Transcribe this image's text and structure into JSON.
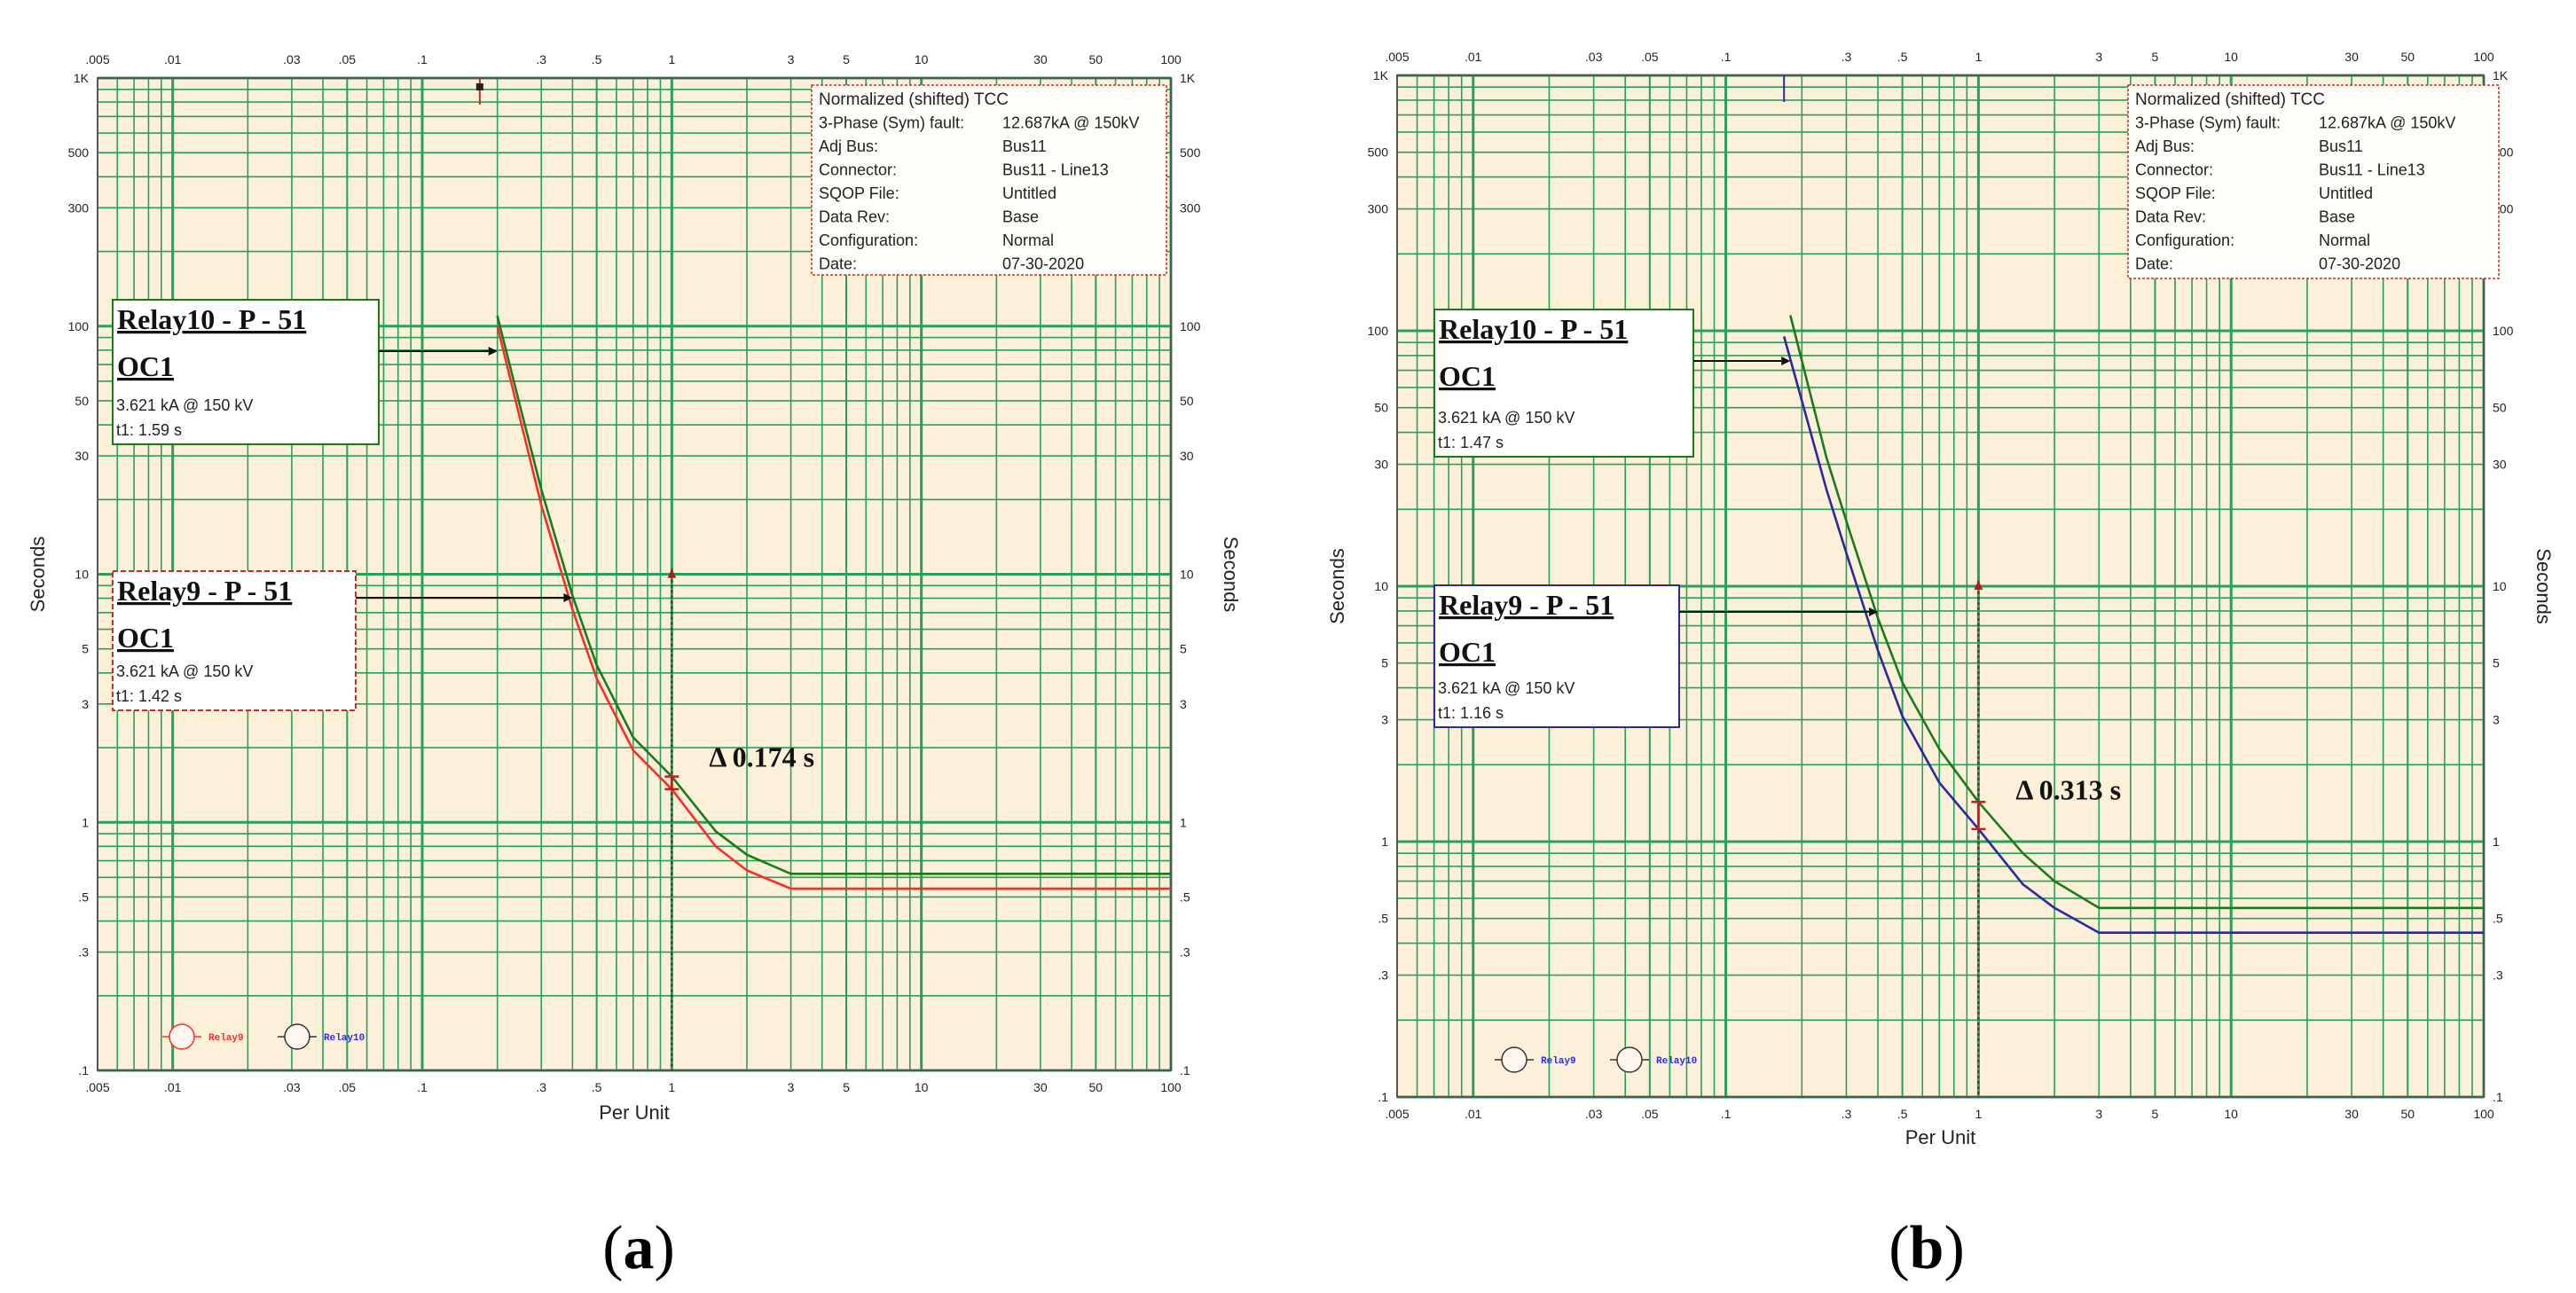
{
  "panels": [
    {
      "id": "a",
      "caption_open": "(",
      "caption_letter": "a",
      "caption_close": ")",
      "chart_data": {
        "type": "line",
        "scale": "log-log",
        "xlabel": "Per Unit",
        "ylabel": "Seconds",
        "ylabel_right": "Seconds",
        "xlim": [
          0.005,
          100
        ],
        "ylim": [
          0.1,
          1000
        ],
        "x_ticks": [
          {
            "v": 0.005,
            "t": ".005"
          },
          {
            "v": 0.01,
            "t": ".01"
          },
          {
            "v": 0.03,
            "t": ".03"
          },
          {
            "v": 0.05,
            "t": ".05"
          },
          {
            "v": 0.1,
            "t": ".1"
          },
          {
            "v": 0.3,
            "t": ".3"
          },
          {
            "v": 0.5,
            "t": ".5"
          },
          {
            "v": 1,
            "t": "1"
          },
          {
            "v": 3,
            "t": "3"
          },
          {
            "v": 5,
            "t": "5"
          },
          {
            "v": 10,
            "t": "10"
          },
          {
            "v": 30,
            "t": "30"
          },
          {
            "v": 50,
            "t": "50"
          },
          {
            "v": 100,
            "t": "100"
          }
        ],
        "y_ticks": [
          {
            "v": 0.1,
            "t": ".1"
          },
          {
            "v": 0.3,
            "t": ".3"
          },
          {
            "v": 0.5,
            "t": ".5"
          },
          {
            "v": 1,
            "t": "1"
          },
          {
            "v": 3,
            "t": "3"
          },
          {
            "v": 5,
            "t": "5"
          },
          {
            "v": 10,
            "t": "10"
          },
          {
            "v": 30,
            "t": "30"
          },
          {
            "v": 50,
            "t": "50"
          },
          {
            "v": 100,
            "t": "100"
          },
          {
            "v": 300,
            "t": "300"
          },
          {
            "v": 500,
            "t": "500"
          },
          {
            "v": 1000,
            "t": "1K"
          }
        ],
        "series": [
          {
            "name": "Relay10",
            "color": "#1a7a1a",
            "x": [
              0.2,
              0.25,
              0.3,
              0.4,
              0.5,
              0.7,
              1,
              1.5,
              2,
              3,
              100
            ],
            "y": [
              110,
              45,
              22,
              8.2,
              4.3,
              2.2,
              1.53,
              0.92,
              0.74,
              0.62,
              0.62
            ]
          },
          {
            "name": "Relay9",
            "color": "#ff2a2a",
            "x": [
              0.2,
              0.25,
              0.3,
              0.4,
              0.5,
              0.7,
              1,
              1.5,
              2,
              3,
              100
            ],
            "y": [
              100,
              40,
              19,
              7.2,
              3.8,
              1.95,
              1.36,
              0.8,
              0.64,
              0.54,
              0.54
            ]
          }
        ],
        "delta_label": "Δ 0.174 s",
        "delta_x": 1,
        "delta_top": 1.53,
        "delta_bottom": 1.36,
        "fault_marker_x": 1,
        "fault_marker_top": 10.5,
        "top_marker_x": 0.17,
        "top_marker_color": "#cc2a2a",
        "info_box": {
          "title": "Normalized (shifted) TCC",
          "rows": [
            {
              "k": "3-Phase (Sym) fault:",
              "v": "12.687kA @ 150kV"
            },
            {
              "k": "Adj Bus:",
              "v": "Bus11"
            },
            {
              "k": "Connector:",
              "v": "Bus11 - Line13"
            },
            {
              "k": "SQOP File:",
              "v": "Untitled"
            },
            {
              "k": "Data Rev:",
              "v": "Base"
            },
            {
              "k": "Configuration:",
              "v": "Normal"
            },
            {
              "k": "Date:",
              "v": "07-30-2020"
            }
          ]
        },
        "annotations": [
          {
            "title": "Relay10 - P - 51",
            "sub": "OC1",
            "line1": "3.621 kA @ 150 kV",
            "line2": "t1: 1.59 s",
            "border": "#1a7a1a",
            "dashed": false,
            "target_x": 0.2,
            "target_y": 100
          },
          {
            "title": "Relay9 - P - 51",
            "sub": "OC1",
            "line1": "3.621 kA @ 150 kV",
            "line2": "t1: 1.42 s",
            "border": "#cc2a2a",
            "dashed": true,
            "target_x": 0.4,
            "target_y": 9
          }
        ],
        "legend": [
          {
            "label": "Relay9",
            "color": "#ff2a2a",
            "ring": "#ff2a2a"
          },
          {
            "label": "Relay10",
            "color": "#2a2aff",
            "ring": "#333333"
          }
        ]
      }
    },
    {
      "id": "b",
      "caption_open": "(",
      "caption_letter": "b",
      "caption_close": ")",
      "chart_data": {
        "type": "line",
        "scale": "log-log",
        "xlabel": "Per Unit",
        "ylabel": "Seconds",
        "ylabel_right": "Seconds",
        "xlim": [
          0.005,
          100
        ],
        "ylim": [
          0.1,
          1000
        ],
        "x_ticks": [
          {
            "v": 0.005,
            "t": ".005"
          },
          {
            "v": 0.01,
            "t": ".01"
          },
          {
            "v": 0.03,
            "t": ".03"
          },
          {
            "v": 0.05,
            "t": ".05"
          },
          {
            "v": 0.1,
            "t": ".1"
          },
          {
            "v": 0.3,
            "t": ".3"
          },
          {
            "v": 0.5,
            "t": ".5"
          },
          {
            "v": 1,
            "t": "1"
          },
          {
            "v": 3,
            "t": "3"
          },
          {
            "v": 5,
            "t": "5"
          },
          {
            "v": 10,
            "t": "10"
          },
          {
            "v": 30,
            "t": "30"
          },
          {
            "v": 50,
            "t": "50"
          },
          {
            "v": 100,
            "t": "100"
          }
        ],
        "y_ticks": [
          {
            "v": 0.1,
            "t": ".1"
          },
          {
            "v": 0.3,
            "t": ".3"
          },
          {
            "v": 0.5,
            "t": ".5"
          },
          {
            "v": 1,
            "t": "1"
          },
          {
            "v": 3,
            "t": "3"
          },
          {
            "v": 5,
            "t": "5"
          },
          {
            "v": 10,
            "t": "10"
          },
          {
            "v": 30,
            "t": "30"
          },
          {
            "v": 50,
            "t": "50"
          },
          {
            "v": 100,
            "t": "100"
          },
          {
            "v": 300,
            "t": "300"
          },
          {
            "v": 500,
            "t": "500"
          },
          {
            "v": 1000,
            "t": "1K"
          }
        ],
        "series": [
          {
            "name": "Relay10",
            "color": "#1a7a1a",
            "x": [
              0.18,
              0.25,
              0.3,
              0.4,
              0.5,
              0.7,
              1,
              1.5,
              2,
              3,
              100
            ],
            "y": [
              115,
              32,
              18,
              7.5,
              4.2,
              2.3,
              1.43,
              0.9,
              0.7,
              0.55,
              0.55
            ]
          },
          {
            "name": "Relay9",
            "color": "#2a2a9a",
            "x": [
              0.17,
              0.25,
              0.3,
              0.4,
              0.5,
              0.7,
              1,
              1.5,
              2,
              3,
              100
            ],
            "y": [
              95,
              24,
              13.5,
              5.6,
              3.1,
              1.7,
              1.12,
              0.68,
              0.55,
              0.44,
              0.44
            ]
          }
        ],
        "delta_label": "Δ 0.313 s",
        "delta_x": 1,
        "delta_top": 1.43,
        "delta_bottom": 1.12,
        "fault_marker_x": 1,
        "fault_marker_top": 10.5,
        "top_marker_x": 0.17,
        "top_marker_color": "#2a2a9a",
        "info_box": {
          "title": "Normalized (shifted) TCC",
          "rows": [
            {
              "k": "3-Phase (Sym) fault:",
              "v": "12.687kA @ 150kV"
            },
            {
              "k": "Adj Bus:",
              "v": "Bus11"
            },
            {
              "k": "Connector:",
              "v": "Bus11 - Line13"
            },
            {
              "k": "SQOP File:",
              "v": "Untitled"
            },
            {
              "k": "Data Rev:",
              "v": "Base"
            },
            {
              "k": "Configuration:",
              "v": "Normal"
            },
            {
              "k": "Date:",
              "v": "07-30-2020"
            }
          ]
        },
        "annotations": [
          {
            "title": "Relay10 - P - 51",
            "sub": "OC1",
            "line1": "3.621 kA @ 150 kV",
            "line2": "t1: 1.47 s",
            "border": "#1a7a1a",
            "dashed": false,
            "target_x": 0.18,
            "target_y": 100
          },
          {
            "title": "Relay9 - P - 51",
            "sub": "OC1",
            "line1": "3.621 kA @ 150 kV",
            "line2": "t1: 1.16 s",
            "border": "#2a2a9a",
            "dashed": false,
            "target_x": 0.4,
            "target_y": 8.5
          }
        ],
        "legend": [
          {
            "label": "Relay9",
            "color": "#2a2aff",
            "ring": "#333333"
          },
          {
            "label": "Relay10",
            "color": "#2a2aff",
            "ring": "#333333"
          }
        ]
      }
    }
  ]
}
